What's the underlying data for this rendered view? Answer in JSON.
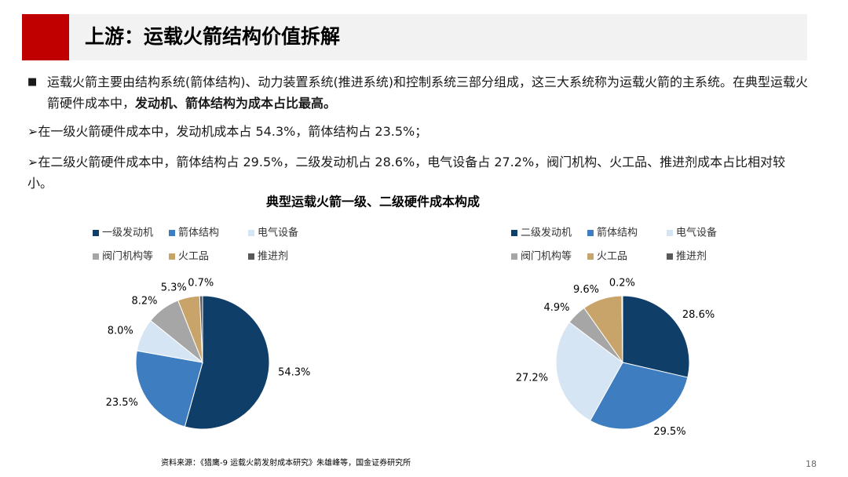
{
  "header": {
    "title": "上游：运载火箭结构价值拆解"
  },
  "bullets": [
    {
      "text": "运载火箭主要由结构系统(箭体结构)、动力装置系统(推进系统)和控制系统三部分组成，这三大系统称为运载火箭的主系统。在典型运载火箭硬件成本中，",
      "bold": "发动机、箭体结构为成本占比最高。"
    },
    {
      "text": "在一级火箭硬件成本中，发动机成本占 54.3%，箭体结构占 23.5%；"
    },
    {
      "text": "在二级火箭硬件成本中，箭体结构占 29.5%，二级发动机占 28.6%，电气设备占 27.2%，阀门机构、火工品、推进剂成本占比相对较小。"
    }
  ],
  "charts_title": "典型运载火箭一级、二级硬件成本构成",
  "chart_data": [
    {
      "type": "pie",
      "categories": [
        "一级发动机",
        "箭体结构",
        "电气设备",
        "阀门机构等",
        "火工品",
        "推进剂"
      ],
      "values": [
        54.3,
        23.5,
        8.0,
        8.2,
        5.3,
        0.7
      ],
      "value_labels": [
        "54.3%",
        "23.5%",
        "8.0%",
        "8.2%",
        "5.3%",
        "0.7%"
      ],
      "colors": [
        "#0f3e69",
        "#3e7dbf",
        "#d5e5f4",
        "#a6a6a6",
        "#c8a46a",
        "#595959"
      ]
    },
    {
      "type": "pie",
      "categories": [
        "二级发动机",
        "箭体结构",
        "电气设备",
        "阀门机构等",
        "火工品",
        "推进剂"
      ],
      "values": [
        28.6,
        29.5,
        27.2,
        4.9,
        9.6,
        0.2
      ],
      "value_labels": [
        "28.6%",
        "29.5%",
        "27.2%",
        "4.9%",
        "9.6%",
        "0.2%"
      ],
      "colors": [
        "#0f3e69",
        "#3e7dbf",
        "#d5e5f4",
        "#a6a6a6",
        "#c8a46a",
        "#595959"
      ]
    }
  ],
  "footer": {
    "source": "资料来源：《猎鹰-9 运载火箭发射成本研究》朱雄峰等，国金证券研究所",
    "page": "18"
  }
}
